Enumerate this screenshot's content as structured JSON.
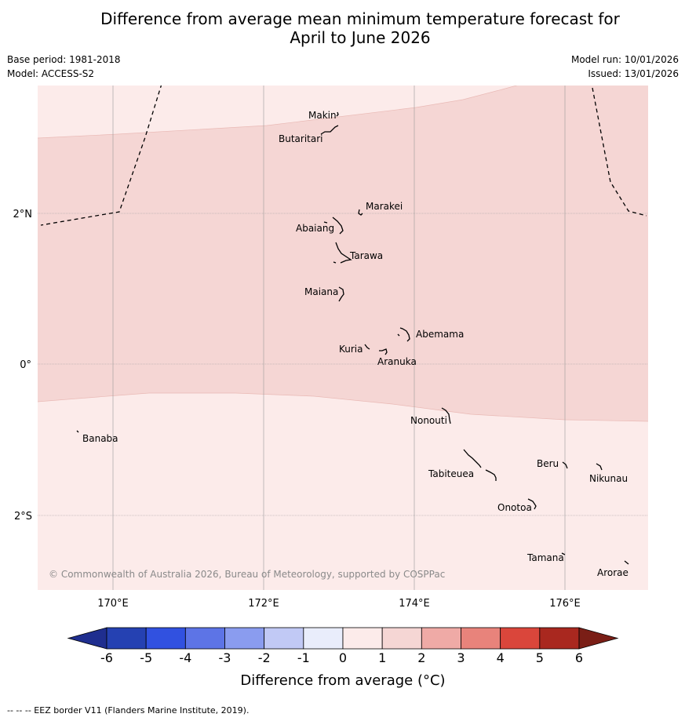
{
  "title": {
    "line1": "Difference from average mean minimum temperature forecast for",
    "line2": "April to June 2026"
  },
  "meta": {
    "base_period": "Base period: 1981-2018",
    "model": "Model: ACCESS-S2",
    "model_run": "Model run: 10/01/2026",
    "issued": "Issued: 13/01/2026"
  },
  "map": {
    "lon_ticks": [
      "170°E",
      "172°E",
      "174°E",
      "176°E"
    ],
    "lat_ticks": [
      "2°N",
      "0°",
      "2°S"
    ],
    "islands": [
      "Makin",
      "Butaritari",
      "Marakei",
      "Abaiang",
      "Tarawa",
      "Maiana",
      "Abemama",
      "Kuria",
      "Aranuka",
      "Nonouti",
      "Banaba",
      "Beru",
      "Nikunau",
      "Tabiteuea",
      "Onotoa",
      "Tamana",
      "Arorae"
    ],
    "copyright": "© Commonwealth of Australia 2026, Bureau of Meteorology, supported by COSPPac",
    "background_color": "#fcebea",
    "anomaly_band_color": "#f5d6d4"
  },
  "legend": {
    "ticks": [
      "-6",
      "-5",
      "-4",
      "-3",
      "-2",
      "-1",
      "0",
      "1",
      "2",
      "3",
      "4",
      "5",
      "6"
    ],
    "colors": [
      "#1f2e8f",
      "#2541b2",
      "#3151e0",
      "#5d74e6",
      "#8a9cef",
      "#c1c9f5",
      "#e9edfb",
      "#fcebea",
      "#f5d6d4",
      "#efaaa6",
      "#e8837b",
      "#da463b",
      "#a9281f",
      "#7a1e16"
    ],
    "label": "Difference from average (°C)"
  },
  "footnote": "--  --  -- EEZ border V11 (Flanders Marine Institute, 2019)."
}
